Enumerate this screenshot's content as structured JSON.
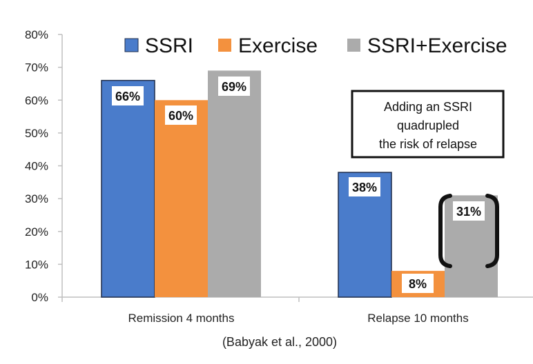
{
  "chart_data": {
    "type": "bar",
    "categories": [
      "Remission 4 months",
      "Relapse 10 months"
    ],
    "series": [
      {
        "name": "SSRI",
        "values": [
          66,
          38
        ],
        "color": "#4A7CCB"
      },
      {
        "name": "Exercise",
        "values": [
          60,
          8
        ],
        "color": "#F3913E"
      },
      {
        "name": "SSRI+Exercise",
        "values": [
          69,
          31
        ],
        "color": "#ABABAB"
      }
    ],
    "data_labels": [
      [
        "66%",
        "38%"
      ],
      [
        "60%",
        "8%"
      ],
      [
        "69%",
        "31%"
      ]
    ],
    "ylim": [
      0,
      80
    ],
    "yticks": [
      "0%",
      "10%",
      "20%",
      "30%",
      "40%",
      "50%",
      "60%",
      "70%",
      "80%"
    ],
    "legend_position": "top",
    "grid": false,
    "annotation": [
      "Adding an SSRI",
      "quadrupled",
      "the risk of relapse"
    ],
    "highlight": "brackets around SSRI+Exercise relapse bar",
    "source": "(Babyak et al., 2000)"
  }
}
